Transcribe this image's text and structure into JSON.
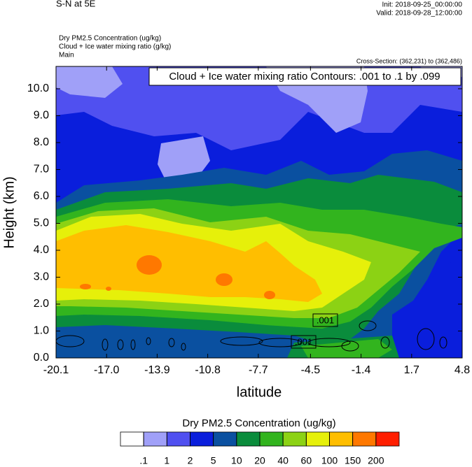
{
  "chart_data": {
    "type": "contour",
    "title": "S-N at 5E",
    "init": "Init: 2018-09-25_00:00:00",
    "valid": "Valid: 2018-09-28_12:00:00",
    "field_titles": [
      "Dry PM2.5 Concentration   (ug/kg)",
      "Cloud + Ice water mixing ratio   (g/kg)",
      "Main"
    ],
    "cross_section": "Cross-Section: (362,231) to (362,486)",
    "contour_title": "Cloud + Ice water mixing ratio Contours: .001 to .1 by .099",
    "contour_labels": [
      ".001",
      ".001"
    ],
    "xlabel": "latitude",
    "ylabel": "Height (km)",
    "xlim": [
      -20.1,
      4.8
    ],
    "xticks": [
      -20.1,
      {
        "value": -17.0,
        "label": "-17.0"
      },
      -13.9,
      -10.8,
      -7.7,
      -4.5,
      -1.4,
      1.7,
      4.8
    ],
    "ylim": [
      0,
      10.83
    ],
    "yticks": [
      {
        "value": 0,
        "label": "0.0"
      },
      {
        "value": 1,
        "label": "1.0"
      },
      {
        "value": 2,
        "label": "2.0"
      },
      {
        "value": 3,
        "label": "3.0"
      },
      {
        "value": 4,
        "label": "4.0"
      },
      {
        "value": 5,
        "label": "5.0"
      },
      {
        "value": 6,
        "label": "6.0"
      },
      {
        "value": 7,
        "label": "7.0"
      },
      {
        "value": 8,
        "label": "8.0"
      },
      {
        "value": 9,
        "label": "9.0"
      },
      {
        "value": 10,
        "label": "10.0"
      }
    ],
    "colorbar": {
      "title": "Dry PM2.5 Concentration  (ug/kg)",
      "levels": [
        {
          "value": 0.1,
          "label": ".1"
        },
        1,
        2,
        5,
        10,
        20,
        40,
        60,
        100,
        150,
        200
      ],
      "colors": [
        "#ffffff",
        "#a0a0f8",
        "#5050f0",
        "#0a1edc",
        "#0a50a0",
        "#0a8c3c",
        "#32b41e",
        "#8cd214",
        "#e6f00a",
        "#ffbe00",
        "#ff7800",
        "#ff1e00"
      ]
    }
  }
}
